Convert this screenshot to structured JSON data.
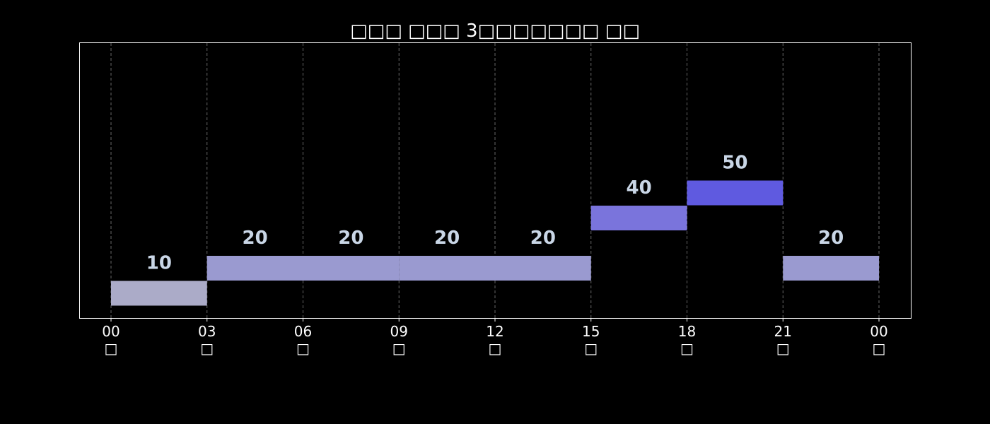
{
  "chart_data": {
    "type": "bar",
    "title": "□□□ □□□ 3□□□□□□□ □□",
    "xlabel": "",
    "ylabel": "",
    "x_ticks": [
      {
        "hour": "00",
        "sub": "□"
      },
      {
        "hour": "03",
        "sub": "□"
      },
      {
        "hour": "06",
        "sub": "□"
      },
      {
        "hour": "09",
        "sub": "□"
      },
      {
        "hour": "12",
        "sub": "□"
      },
      {
        "hour": "15",
        "sub": "□"
      },
      {
        "hour": "18",
        "sub": "□"
      },
      {
        "hour": "21",
        "sub": "□"
      },
      {
        "hour": "00",
        "sub": "□"
      }
    ],
    "x_range_hours": [
      0,
      24
    ],
    "y_range": [
      -20,
      90
    ],
    "grid": "vertical dashed",
    "legend": "none",
    "bars": [
      {
        "start": 0,
        "end": 3,
        "value": 10,
        "color": "#ababc8"
      },
      {
        "start": 3,
        "end": 6,
        "value": 20,
        "color": "#9a9ad0"
      },
      {
        "start": 6,
        "end": 9,
        "value": 20,
        "color": "#9a9ad0"
      },
      {
        "start": 9,
        "end": 12,
        "value": 20,
        "color": "#9a9ad0"
      },
      {
        "start": 12,
        "end": 15,
        "value": 20,
        "color": "#9a9ad0"
      },
      {
        "start": 15,
        "end": 18,
        "value": 40,
        "color": "#7a74dc"
      },
      {
        "start": 18,
        "end": 21,
        "value": 50,
        "color": "#5f5ae0"
      },
      {
        "start": 21,
        "end": 24,
        "value": 20,
        "color": "#9a9ad0"
      }
    ],
    "colors": {
      "background": "#000000",
      "axes_frame": "#ffffff",
      "grid": "#666666",
      "text": "#ffffff",
      "data_label": "#c9d6e6"
    }
  }
}
